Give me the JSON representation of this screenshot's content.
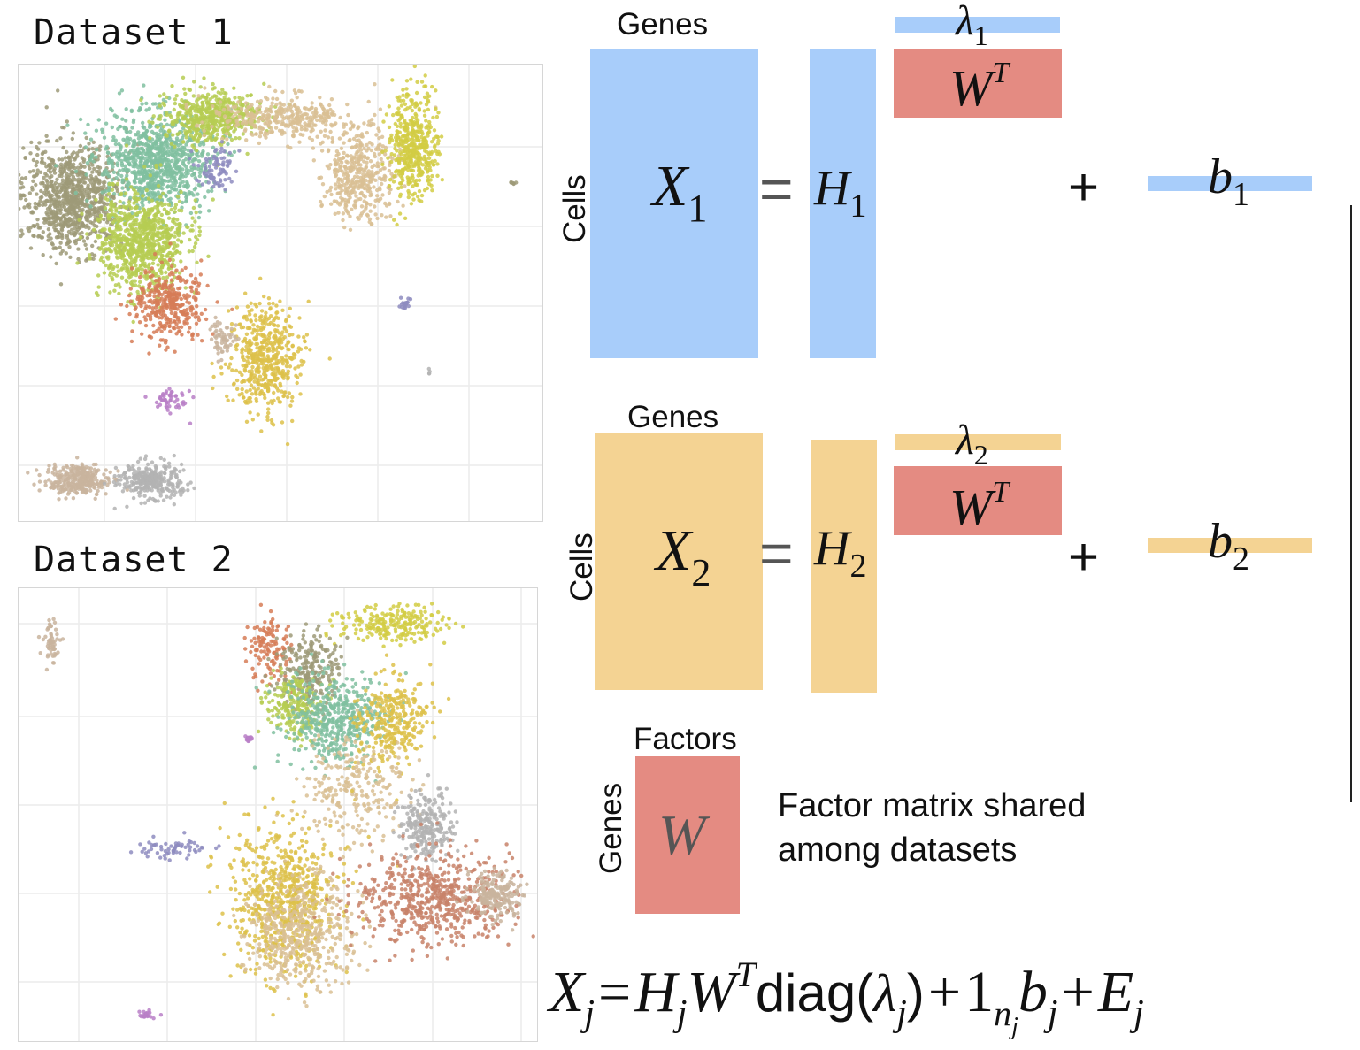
{
  "datasets": {
    "dataset1_title": "Dataset 1",
    "dataset2_title": "Dataset 2"
  },
  "eq1": {
    "genes_label": "Genes",
    "cells_label": "Cells",
    "x_sym": "X",
    "x_sub": "1",
    "equals": "=",
    "h_sym": "H",
    "h_sub": "1",
    "lambda_sym": "λ",
    "lambda_sub": "1",
    "w_sym": "W",
    "w_sup": "T",
    "plus": "+",
    "b_sym": "b",
    "b_sub": "1"
  },
  "eq2": {
    "genes_label": "Genes",
    "cells_label": "Cells",
    "x_sym": "X",
    "x_sub": "2",
    "equals": "=",
    "h_sym": "H",
    "h_sub": "2",
    "lambda_sym": "λ",
    "lambda_sub": "2",
    "w_sym": "W",
    "w_sup": "T",
    "plus": "+",
    "b_sym": "b",
    "b_sub": "2"
  },
  "factor": {
    "factors_label": "Factors",
    "genes_label": "Genes",
    "w_sym": "W",
    "description_line1": "Factor matrix shared",
    "description_line2": "among datasets"
  },
  "formula": {
    "x": "X",
    "j": "j",
    "eq": "=",
    "h": "H",
    "w": "W",
    "t": "T",
    "diag": "diag(",
    "lambda": "λ",
    "close": ")",
    "plus": "+",
    "one": "1",
    "n": "n",
    "b": "b",
    "e": "E"
  },
  "colors": {
    "blue": "#a8cdfa",
    "orange": "#f4d393",
    "red": "#e48b82",
    "cluster_palette": [
      "#9e9a78",
      "#80c0a0",
      "#b6cc52",
      "#d2cc44",
      "#d67d57",
      "#ddc14a",
      "#d9bf94",
      "#8e8cc0",
      "#b87fc7",
      "#c9b49d",
      "#b3b3b3",
      "#c8836a"
    ]
  }
}
